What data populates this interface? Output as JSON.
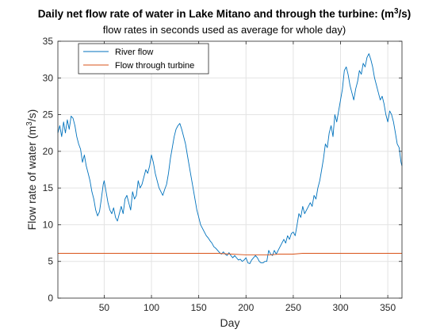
{
  "chart_data": {
    "type": "line",
    "title": "Daily net flow rate of water in Lake Mitano and through the turbine: (m",
    "title_sup": "3",
    "title_tail": "/s)",
    "subtitle": "flow rates in seconds used as average for whole day)",
    "xlabel": "Day",
    "ylabel": "Flow rate of water (m",
    "ylabel_sup": "3",
    "ylabel_tail": "/s)",
    "xlim": [
      1,
      365
    ],
    "ylim": [
      0,
      35
    ],
    "xticks": [
      50,
      100,
      150,
      200,
      250,
      300,
      350
    ],
    "yticks": [
      0,
      5,
      10,
      15,
      20,
      25,
      30,
      35
    ],
    "grid": true,
    "legend_location": "top-left",
    "series": [
      {
        "name": "River flow",
        "color": "#0072BD",
        "points": [
          [
            1,
            22.5
          ],
          [
            3,
            23.5
          ],
          [
            5,
            22
          ],
          [
            7,
            24
          ],
          [
            9,
            22.5
          ],
          [
            11,
            24.3
          ],
          [
            13,
            23
          ],
          [
            15,
            24.8
          ],
          [
            17,
            24.5
          ],
          [
            19,
            23.5
          ],
          [
            21,
            22
          ],
          [
            23,
            21
          ],
          [
            25,
            20.3
          ],
          [
            27,
            18.5
          ],
          [
            29,
            19.5
          ],
          [
            31,
            18
          ],
          [
            33,
            17
          ],
          [
            35,
            16
          ],
          [
            37,
            14.5
          ],
          [
            39,
            13.5
          ],
          [
            41,
            12
          ],
          [
            43,
            11.2
          ],
          [
            45,
            11.8
          ],
          [
            47,
            13.5
          ],
          [
            49,
            15.5
          ],
          [
            50,
            16
          ],
          [
            52,
            14.5
          ],
          [
            54,
            13
          ],
          [
            56,
            12
          ],
          [
            58,
            11.5
          ],
          [
            60,
            12.3
          ],
          [
            62,
            11
          ],
          [
            64,
            10.5
          ],
          [
            66,
            11.5
          ],
          [
            68,
            12.5
          ],
          [
            70,
            11.5
          ],
          [
            72,
            13.5
          ],
          [
            74,
            14
          ],
          [
            76,
            13
          ],
          [
            78,
            12
          ],
          [
            80,
            14.5
          ],
          [
            82,
            13.5
          ],
          [
            84,
            14
          ],
          [
            86,
            16
          ],
          [
            88,
            15
          ],
          [
            90,
            15.5
          ],
          [
            92,
            16.5
          ],
          [
            94,
            17.5
          ],
          [
            96,
            17
          ],
          [
            98,
            18
          ],
          [
            100,
            19.5
          ],
          [
            102,
            18.5
          ],
          [
            104,
            17
          ],
          [
            106,
            16
          ],
          [
            108,
            15
          ],
          [
            110,
            14.5
          ],
          [
            112,
            14
          ],
          [
            114,
            14.8
          ],
          [
            116,
            15.5
          ],
          [
            118,
            17
          ],
          [
            120,
            19
          ],
          [
            122,
            20.5
          ],
          [
            124,
            22
          ],
          [
            126,
            23
          ],
          [
            128,
            23.5
          ],
          [
            130,
            23.8
          ],
          [
            132,
            23
          ],
          [
            134,
            22
          ],
          [
            136,
            21
          ],
          [
            138,
            19.5
          ],
          [
            140,
            18
          ],
          [
            142,
            16.5
          ],
          [
            144,
            15
          ],
          [
            146,
            13.5
          ],
          [
            148,
            12
          ],
          [
            150,
            11
          ],
          [
            152,
            10
          ],
          [
            154,
            9.5
          ],
          [
            156,
            9
          ],
          [
            158,
            8.5
          ],
          [
            160,
            8.2
          ],
          [
            162,
            7.8
          ],
          [
            164,
            7.5
          ],
          [
            166,
            7
          ],
          [
            168,
            6.8
          ],
          [
            170,
            6.5
          ],
          [
            172,
            6.2
          ],
          [
            174,
            6
          ],
          [
            176,
            6.3
          ],
          [
            178,
            6
          ],
          [
            180,
            5.8
          ],
          [
            182,
            6.2
          ],
          [
            184,
            5.8
          ],
          [
            186,
            5.5
          ],
          [
            188,
            5.8
          ],
          [
            190,
            5.5
          ],
          [
            192,
            5.2
          ],
          [
            194,
            5.3
          ],
          [
            196,
            5
          ],
          [
            198,
            5.2
          ],
          [
            200,
            5.5
          ],
          [
            202,
            4.8
          ],
          [
            204,
            4.7
          ],
          [
            206,
            5.2
          ],
          [
            208,
            5.5
          ],
          [
            210,
            5.8
          ],
          [
            212,
            5.5
          ],
          [
            214,
            5
          ],
          [
            216,
            4.8
          ],
          [
            218,
            4.8
          ],
          [
            220,
            5
          ],
          [
            222,
            5
          ],
          [
            224,
            6.5
          ],
          [
            226,
            6
          ],
          [
            228,
            5.8
          ],
          [
            230,
            6.5
          ],
          [
            232,
            6
          ],
          [
            234,
            6.5
          ],
          [
            236,
            7
          ],
          [
            238,
            7.5
          ],
          [
            240,
            8
          ],
          [
            242,
            7.5
          ],
          [
            244,
            8.5
          ],
          [
            246,
            8
          ],
          [
            248,
            8.8
          ],
          [
            250,
            9
          ],
          [
            252,
            8.5
          ],
          [
            254,
            10
          ],
          [
            256,
            11.5
          ],
          [
            258,
            11
          ],
          [
            260,
            12.5
          ],
          [
            262,
            11.5
          ],
          [
            264,
            12
          ],
          [
            266,
            12.5
          ],
          [
            268,
            13
          ],
          [
            270,
            12.5
          ],
          [
            272,
            14
          ],
          [
            274,
            13.5
          ],
          [
            276,
            15
          ],
          [
            278,
            16
          ],
          [
            280,
            17.5
          ],
          [
            282,
            19
          ],
          [
            284,
            21
          ],
          [
            286,
            20.5
          ],
          [
            288,
            22.5
          ],
          [
            290,
            23.5
          ],
          [
            292,
            22
          ],
          [
            294,
            25
          ],
          [
            296,
            24
          ],
          [
            298,
            25.5
          ],
          [
            300,
            27
          ],
          [
            302,
            28.5
          ],
          [
            304,
            31
          ],
          [
            306,
            31.5
          ],
          [
            308,
            30.5
          ],
          [
            310,
            29
          ],
          [
            312,
            28
          ],
          [
            314,
            27
          ],
          [
            316,
            28.5
          ],
          [
            318,
            29.5
          ],
          [
            320,
            31
          ],
          [
            322,
            30.5
          ],
          [
            324,
            32
          ],
          [
            326,
            31.5
          ],
          [
            328,
            32.8
          ],
          [
            330,
            33.3
          ],
          [
            332,
            32.5
          ],
          [
            334,
            31.5
          ],
          [
            336,
            30
          ],
          [
            338,
            29
          ],
          [
            340,
            28
          ],
          [
            342,
            27
          ],
          [
            344,
            27.5
          ],
          [
            346,
            26.5
          ],
          [
            348,
            25
          ],
          [
            350,
            24
          ],
          [
            352,
            25.5
          ],
          [
            354,
            25
          ],
          [
            356,
            24
          ],
          [
            358,
            22.5
          ],
          [
            360,
            21
          ],
          [
            362,
            20.5
          ],
          [
            364,
            18.5
          ],
          [
            365,
            18
          ]
        ]
      },
      {
        "name": "Flow through turbine",
        "color": "#D95319",
        "points": [
          [
            1,
            6.1
          ],
          [
            170,
            6.1
          ],
          [
            185,
            6.0
          ],
          [
            200,
            5.9
          ],
          [
            215,
            5.9
          ],
          [
            225,
            5.9
          ],
          [
            235,
            6.0
          ],
          [
            250,
            6.0
          ],
          [
            260,
            6.1
          ],
          [
            365,
            6.1
          ]
        ]
      }
    ]
  }
}
